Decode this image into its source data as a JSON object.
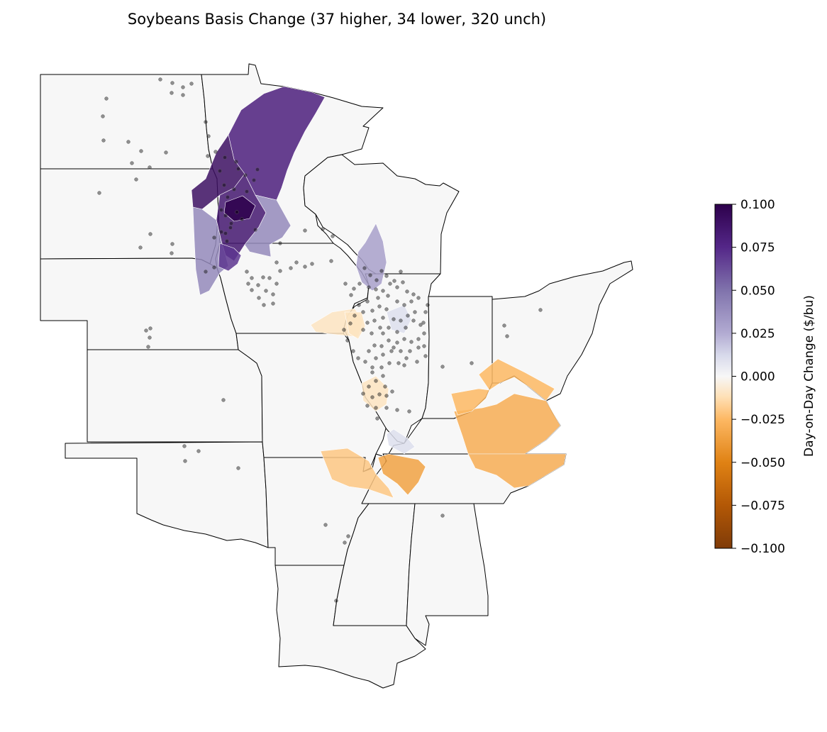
{
  "title": "Soybeans Basis Change (37 higher, 34 lower, 320 unch)",
  "colorbar": {
    "label": "Day-on-Day Change ($/bu)",
    "min": -0.1,
    "max": 0.1,
    "ticks": [
      "0.100",
      "0.075",
      "0.050",
      "0.025",
      "0.000",
      "−0.025",
      "−0.050",
      "−0.075",
      "−0.100"
    ],
    "colormap": "PuOr",
    "colors": {
      "max": "#2d004b",
      "mid": "#f7f7f7",
      "min": "#7f3b08"
    }
  },
  "summary": {
    "higher": 37,
    "lower": 34,
    "unchanged": 320
  },
  "layers": {
    "states": [
      "ND",
      "SD",
      "NE",
      "KS",
      "OK",
      "MN",
      "IA",
      "MO",
      "AR",
      "LA",
      "WI",
      "IL",
      "IN",
      "OH",
      "KY",
      "TN",
      "MS",
      "AL"
    ],
    "basemap_fill": "#f7f7f7",
    "border_color": "#000000",
    "elevator_marker_color": "#000000"
  },
  "regions": [
    {
      "id": "mn-northwest",
      "state": "MN",
      "change": 0.08
    },
    {
      "id": "mn-west-central",
      "state": "MN",
      "change": 0.09
    },
    {
      "id": "mn-south-central",
      "state": "MN",
      "change": 0.085
    },
    {
      "id": "mn-southwest",
      "state": "MN",
      "change": 0.1
    },
    {
      "id": "mn-southeast",
      "state": "MN",
      "change": 0.04
    },
    {
      "id": "sd-east",
      "state": "SD",
      "change": 0.04
    },
    {
      "id": "ia-northwest",
      "state": "IA",
      "change": 0.07
    },
    {
      "id": "wi-southwest",
      "state": "WI",
      "change": 0.03
    },
    {
      "id": "il-east-central",
      "state": "IL",
      "change": 0.01
    },
    {
      "id": "il-south",
      "state": "IL",
      "change": 0.01
    },
    {
      "id": "ky-central",
      "state": "KY",
      "change": -0.03
    },
    {
      "id": "tn-central",
      "state": "TN",
      "change": -0.03
    },
    {
      "id": "oh-southwest",
      "state": "OH",
      "change": -0.025
    },
    {
      "id": "in-southwest",
      "state": "IN",
      "change": -0.025
    },
    {
      "id": "ar-northeast",
      "state": "AR",
      "change": -0.02
    },
    {
      "id": "tn-west",
      "state": "TN",
      "change": -0.035
    },
    {
      "id": "mo-northeast",
      "state": "MO",
      "change": -0.01
    },
    {
      "id": "il-west",
      "state": "IL",
      "change": -0.01
    },
    {
      "id": "il-southwest",
      "state": "IL",
      "change": -0.01
    }
  ]
}
